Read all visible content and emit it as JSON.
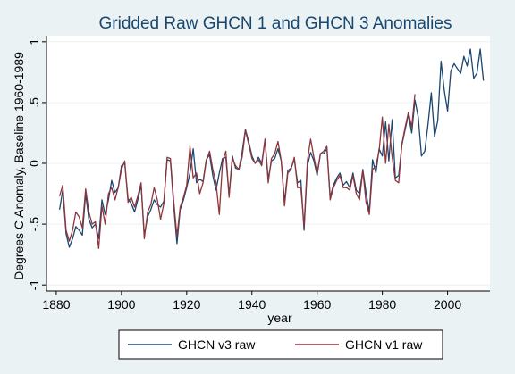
{
  "chart_data": {
    "type": "line",
    "title": "Gridded Raw GHCN 1 and GHCN 3 Anomalies",
    "xlabel": "year",
    "ylabel": "Degrees C Anomaly, Baseline 1960-1989",
    "xlim": [
      1877,
      2013
    ],
    "ylim": [
      -1.05,
      1.05
    ],
    "xticks": [
      1880,
      1900,
      1920,
      1940,
      1960,
      1980,
      2000
    ],
    "yticks": [
      -1,
      -0.5,
      0,
      0.5,
      1
    ],
    "ytick_labels": [
      "-1",
      "-.5",
      "0",
      ".5",
      "1"
    ],
    "grid": "horizontal",
    "legend_position": "bottom",
    "series": [
      {
        "name": "GHCN v3 raw",
        "color": "#1a476f",
        "x": [
          1881,
          1882,
          1883,
          1884,
          1885,
          1886,
          1887,
          1888,
          1889,
          1890,
          1891,
          1892,
          1893,
          1894,
          1895,
          1896,
          1897,
          1898,
          1899,
          1900,
          1901,
          1902,
          1903,
          1904,
          1905,
          1906,
          1907,
          1908,
          1909,
          1910,
          1911,
          1912,
          1913,
          1914,
          1915,
          1916,
          1917,
          1918,
          1919,
          1920,
          1921,
          1922,
          1923,
          1924,
          1925,
          1926,
          1927,
          1928,
          1929,
          1930,
          1931,
          1932,
          1933,
          1934,
          1935,
          1936,
          1937,
          1938,
          1939,
          1940,
          1941,
          1942,
          1943,
          1944,
          1945,
          1946,
          1947,
          1948,
          1949,
          1950,
          1951,
          1952,
          1953,
          1954,
          1955,
          1956,
          1957,
          1958,
          1959,
          1960,
          1961,
          1962,
          1963,
          1964,
          1965,
          1966,
          1967,
          1968,
          1969,
          1970,
          1971,
          1972,
          1973,
          1974,
          1975,
          1976,
          1977,
          1978,
          1979,
          1980,
          1981,
          1982,
          1983,
          1984,
          1985,
          1986,
          1987,
          1988,
          1989,
          1990,
          1991,
          1992,
          1993,
          1994,
          1995,
          1996,
          1997,
          1998,
          1999,
          2000,
          2001,
          2002,
          2003,
          2004,
          2005,
          2006,
          2007,
          2008,
          2009,
          2010,
          2011
        ],
        "y": [
          -0.38,
          -0.22,
          -0.58,
          -0.69,
          -0.62,
          -0.52,
          -0.55,
          -0.59,
          -0.25,
          -0.46,
          -0.53,
          -0.5,
          -0.62,
          -0.3,
          -0.42,
          -0.3,
          -0.14,
          -0.24,
          -0.2,
          -0.02,
          0.0,
          -0.29,
          -0.33,
          -0.4,
          -0.3,
          -0.18,
          -0.59,
          -0.44,
          -0.38,
          -0.3,
          -0.34,
          -0.36,
          -0.31,
          0.03,
          0.02,
          -0.34,
          -0.66,
          -0.38,
          -0.3,
          -0.2,
          -0.08,
          0.12,
          -0.16,
          -0.13,
          -0.15,
          0.03,
          0.07,
          -0.1,
          -0.22,
          -0.08,
          0.04,
          0.05,
          -0.26,
          0.06,
          -0.04,
          -0.05,
          0.09,
          0.28,
          0.18,
          0.06,
          0.0,
          0.05,
          0.0,
          0.19,
          -0.13,
          0.02,
          0.04,
          0.12,
          0.02,
          -0.32,
          -0.06,
          -0.04,
          0.03,
          -0.16,
          -0.14,
          -0.55,
          -0.02,
          0.09,
          0.02,
          -0.1,
          0.08,
          0.08,
          0.12,
          -0.28,
          -0.18,
          -0.12,
          -0.08,
          -0.18,
          -0.15,
          -0.2,
          -0.08,
          -0.22,
          -0.25,
          -0.05,
          -0.24,
          -0.4,
          0.03,
          -0.08,
          0.12,
          0.06,
          0.34,
          0.02,
          0.36,
          -0.12,
          -0.1,
          0.15,
          0.28,
          0.4,
          0.25,
          0.52,
          0.38,
          0.06,
          0.1,
          0.32,
          0.58,
          0.22,
          0.35,
          0.84,
          0.6,
          0.43,
          0.76,
          0.82,
          0.78,
          0.74,
          0.88,
          0.8,
          0.94,
          0.7,
          0.74,
          0.94,
          0.68
        ]
      },
      {
        "name": "GHCN v1 raw",
        "color": "#90353b",
        "x": [
          1881,
          1882,
          1883,
          1884,
          1885,
          1886,
          1887,
          1888,
          1889,
          1890,
          1891,
          1892,
          1893,
          1894,
          1895,
          1896,
          1897,
          1898,
          1899,
          1900,
          1901,
          1902,
          1903,
          1904,
          1905,
          1906,
          1907,
          1908,
          1909,
          1910,
          1911,
          1912,
          1913,
          1914,
          1915,
          1916,
          1917,
          1918,
          1919,
          1920,
          1921,
          1922,
          1923,
          1924,
          1925,
          1926,
          1927,
          1928,
          1929,
          1930,
          1931,
          1932,
          1933,
          1934,
          1935,
          1936,
          1937,
          1938,
          1939,
          1940,
          1941,
          1942,
          1943,
          1944,
          1945,
          1946,
          1947,
          1948,
          1949,
          1950,
          1951,
          1952,
          1953,
          1954,
          1955,
          1956,
          1957,
          1958,
          1959,
          1960,
          1961,
          1962,
          1963,
          1964,
          1965,
          1966,
          1967,
          1968,
          1969,
          1970,
          1971,
          1972,
          1973,
          1974,
          1975,
          1976,
          1977,
          1978,
          1979,
          1980,
          1981,
          1982,
          1983,
          1984,
          1985,
          1986,
          1987,
          1988,
          1989,
          1990
        ],
        "y": [
          -0.27,
          -0.18,
          -0.55,
          -0.64,
          -0.55,
          -0.4,
          -0.44,
          -0.53,
          -0.21,
          -0.4,
          -0.5,
          -0.48,
          -0.7,
          -0.35,
          -0.5,
          -0.25,
          -0.2,
          -0.3,
          -0.2,
          -0.05,
          0.02,
          -0.32,
          -0.28,
          -0.36,
          -0.27,
          -0.16,
          -0.62,
          -0.4,
          -0.34,
          -0.2,
          -0.3,
          -0.46,
          -0.33,
          0.05,
          0.04,
          -0.3,
          -0.6,
          -0.36,
          -0.28,
          -0.18,
          0.14,
          -0.12,
          -0.08,
          -0.25,
          -0.16,
          0.02,
          0.1,
          -0.05,
          -0.16,
          -0.42,
          0.01,
          0.1,
          -0.28,
          0.04,
          -0.02,
          -0.05,
          0.05,
          0.27,
          0.16,
          0.04,
          0.0,
          0.03,
          -0.02,
          0.2,
          -0.16,
          0.04,
          0.08,
          0.18,
          0.02,
          -0.35,
          -0.08,
          -0.05,
          0.05,
          -0.2,
          -0.2,
          -0.52,
          0.02,
          0.2,
          0.05,
          -0.08,
          0.08,
          0.1,
          0.14,
          -0.3,
          -0.2,
          -0.14,
          -0.1,
          -0.2,
          -0.2,
          -0.22,
          -0.1,
          -0.25,
          -0.3,
          -0.06,
          -0.32,
          -0.42,
          -0.05,
          -0.02,
          0.1,
          0.38,
          0.0,
          0.32,
          0.05,
          -0.14,
          -0.16,
          0.16,
          0.3,
          0.42,
          0.3,
          0.57
        ]
      }
    ]
  }
}
